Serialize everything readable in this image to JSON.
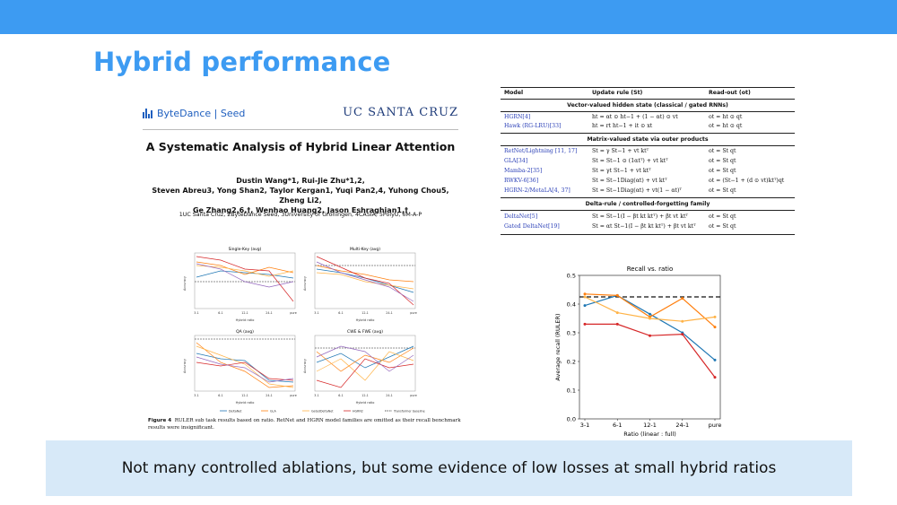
{
  "slide": {
    "title": "Hybrid performance",
    "caption": "Not many controlled ablations, but some evidence of low losses at small hybrid ratios",
    "colors": {
      "accent": "#3d9bf2",
      "caption_bg": "#d7e9f8"
    }
  },
  "paper": {
    "logo_left": "ByteDance | Seed",
    "logo_right": "UC SANTA CRUZ",
    "title": "A Systematic Analysis of Hybrid Linear Attention",
    "authors_line1": "Dustin Wang*1, Rui-Jie Zhu*1,2,",
    "authors_line2": "Steven Abreu3, Yong Shan2, Taylor Kergan1, Yuqi Pan2,4, Yuhong Chou5, Zheng Li2,",
    "authors_line3": "Ge Zhang2,6,†, Wenhao Huang2, Jason Eshraghian1,†",
    "affiliations": "1UC Santa Cruz, 2ByteDance Seed, 3University of Groningen, 4CASIA, 5PolyU, 6M-A-P",
    "figure_label": "Figure 4",
    "figure_caption": "RULER sub task results based on ratio. RetNet and HGRN model families are omitted as their recall benchmark results were insignificant.",
    "subplots": [
      {
        "title": "Single-Key (avg)",
        "ylabel": "Accuracy"
      },
      {
        "title": "Multi-Key (avg)",
        "ylabel": "Accuracy"
      },
      {
        "title": "QA (avg)",
        "ylabel": "Accuracy"
      },
      {
        "title": "CWE & FWE (avg)",
        "ylabel": "Accuracy"
      }
    ],
    "subplot_xlabel": "Hybrid ratio",
    "subplot_ticks": [
      "3-1",
      "6-1",
      "12-1",
      "24-1",
      "pure"
    ],
    "legend": [
      "DeltaNet",
      "GLA",
      "GatedDeltaNet",
      "HGRN2",
      "Transformer baseline"
    ]
  },
  "table": {
    "headers": [
      "Model",
      "Update rule (St)",
      "Read-out (ot)"
    ],
    "sections": [
      {
        "title": "Vector-valued hidden state (classical / gated RNNs)",
        "rows": [
          {
            "model": "HGRN[4]",
            "update": "ht = αt ⊙ ht−1 + (1 − αt) ⊙ vt",
            "readout": "ot = ht ⊙ qt"
          },
          {
            "model": "Hawk (RG-LRU)[33]",
            "update": "ht = rt ht−1 + it ⊙ xt",
            "readout": "ot = ht ⊙ qt"
          }
        ]
      },
      {
        "title": "Matrix-valued state via outer products",
        "rows": [
          {
            "model": "RetNet/Lightning [11, 17]",
            "update": "St = γ St−1 + vt ktᵀ",
            "readout": "ot = St qt"
          },
          {
            "model": "GLA[34]",
            "update": "St = St−1 ⊙ (1αtᵀ) + vt ktᵀ",
            "readout": "ot = St qt"
          },
          {
            "model": "Mamba-2[35]",
            "update": "St = γt St−1 + vt ktᵀ",
            "readout": "ot = St qt"
          },
          {
            "model": "RWKV-6[36]",
            "update": "St = St−1Diag(αt) + vt ktᵀ",
            "readout": "ot = (St−1 + (d ⊙ vt)ktᵀ)qt"
          },
          {
            "model": "HGRN-2/MetaLA[4, 37]",
            "update": "St = St−1Diag(αt) + vt(1 − αt)ᵀ",
            "readout": "ot = St qt"
          }
        ]
      },
      {
        "title": "Delta-rule / controlled-forgetting family",
        "rows": [
          {
            "model": "DeltaNet[5]",
            "update": "St = St−1(I − βt kt ktᵀ) + βt vt ktᵀ",
            "readout": "ot = St qt"
          },
          {
            "model": "Gated DeltaNet[19]",
            "update": "St = αt St−1(I − βt kt ktᵀ) + βt vt ktᵀ",
            "readout": "ot = St qt"
          }
        ]
      }
    ]
  },
  "chart_data": {
    "type": "line",
    "title": "Recall vs. ratio",
    "xlabel": "Ratio (linear : full)",
    "ylabel": "Average recall (RULER)",
    "categories": [
      "3-1",
      "6-1",
      "12-1",
      "24-1",
      "pure"
    ],
    "ylim": [
      0.0,
      0.5
    ],
    "yticks": [
      "0.0",
      "0.1",
      "0.2",
      "0.3",
      "0.4",
      "0.5"
    ],
    "baseline": 0.425,
    "series": [
      {
        "color": "#1f77b4",
        "values": [
          0.395,
          0.43,
          0.365,
          0.3,
          0.205
        ]
      },
      {
        "color": "#ff7f0e",
        "values": [
          0.435,
          0.43,
          0.355,
          0.42,
          0.32
        ]
      },
      {
        "color": "#ffb347",
        "values": [
          0.425,
          0.37,
          0.35,
          0.34,
          0.355
        ]
      },
      {
        "color": "#d62728",
        "values": [
          0.33,
          0.33,
          0.29,
          0.295,
          0.145
        ]
      }
    ]
  }
}
